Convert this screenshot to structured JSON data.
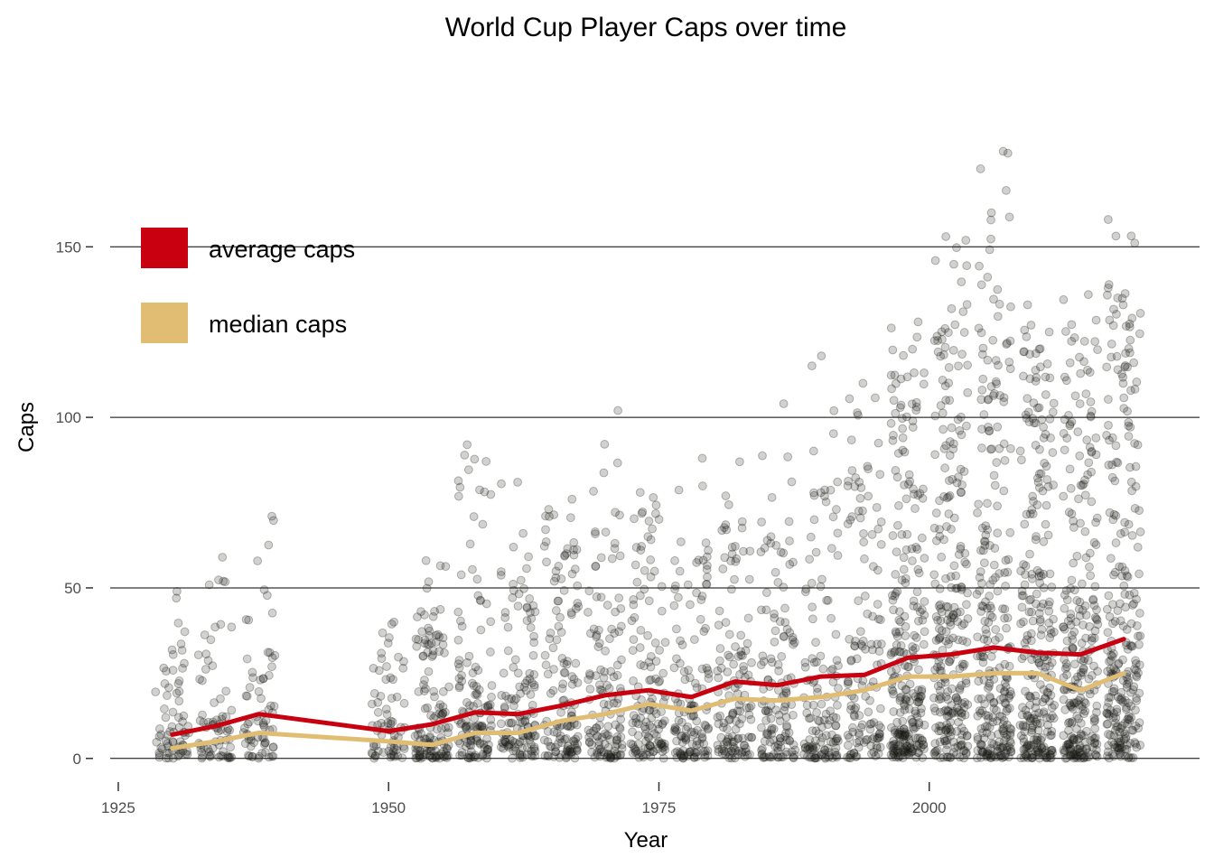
{
  "chart_data": {
    "type": "scatter",
    "title": "World Cup Player Caps over time",
    "xlabel": "Year",
    "ylabel": "Caps",
    "xlim": [
      1923,
      2025
    ],
    "ylim": [
      -8,
      180
    ],
    "x_ticks": [
      1925,
      1950,
      1975,
      2000
    ],
    "y_ticks": [
      0,
      50,
      100,
      150
    ],
    "grid": "horizontal major lines",
    "legend_position": "top-left",
    "colors": {
      "average": "#c8000f",
      "median": "#e0bd72",
      "points": "#1a1a14"
    },
    "series": [
      {
        "name": "average caps",
        "x": [
          1930,
          1934,
          1938,
          1950,
          1954,
          1958,
          1962,
          1966,
          1970,
          1974,
          1978,
          1982,
          1986,
          1990,
          1994,
          1998,
          2002,
          2006,
          2010,
          2014,
          2018
        ],
        "values": [
          7,
          9.5,
          13,
          8,
          10,
          13.5,
          13,
          15.5,
          18.5,
          20,
          18,
          22.5,
          21.5,
          24,
          24.5,
          29.5,
          30.5,
          32.5,
          31,
          30.5,
          35
        ]
      },
      {
        "name": "median caps",
        "x": [
          1930,
          1934,
          1938,
          1950,
          1954,
          1958,
          1962,
          1966,
          1970,
          1974,
          1978,
          1982,
          1986,
          1990,
          1994,
          1998,
          2002,
          2006,
          2010,
          2014,
          2018
        ],
        "values": [
          3,
          5,
          7.5,
          5,
          4,
          7.5,
          7.5,
          11,
          13,
          16,
          14,
          17.5,
          17,
          18,
          20,
          24,
          24,
          25,
          25,
          20,
          25
        ]
      }
    ],
    "scatter_spread": {
      "x": [
        1930,
        1934,
        1938,
        1950,
        1954,
        1958,
        1962,
        1966,
        1970,
        1974,
        1978,
        1982,
        1986,
        1990,
        1994,
        1998,
        2002,
        2006,
        2010,
        2014,
        2018
      ],
      "max_caps": [
        49,
        59,
        71,
        40,
        58,
        92,
        81,
        76,
        102,
        78,
        88,
        87,
        104,
        118,
        110,
        128,
        153,
        178,
        133,
        136,
        158
      ],
      "dense_caps": [
        20,
        25,
        35,
        25,
        28,
        35,
        35,
        40,
        45,
        45,
        40,
        45,
        45,
        50,
        55,
        75,
        80,
        85,
        80,
        75,
        85
      ]
    }
  }
}
